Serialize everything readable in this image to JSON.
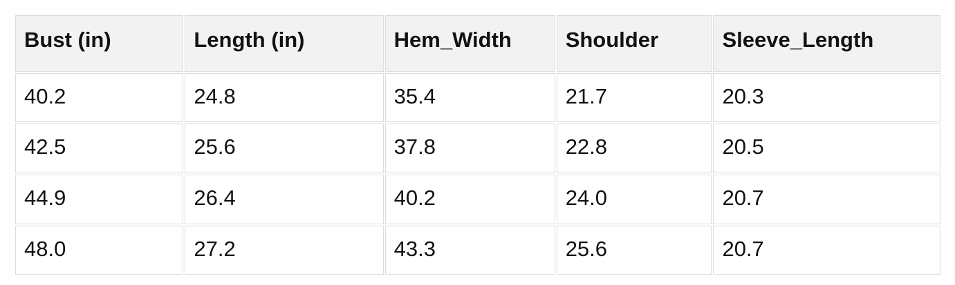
{
  "table": {
    "columns": [
      "Bust (in)",
      "Length (in)",
      "Hem_Width",
      "Shoulder",
      "Sleeve_Length"
    ],
    "rows": [
      [
        "40.2",
        "24.8",
        "35.4",
        "21.7",
        "20.3"
      ],
      [
        "42.5",
        "25.6",
        "37.8",
        "22.8",
        "20.5"
      ],
      [
        "44.9",
        "26.4",
        "40.2",
        "24.0",
        "20.7"
      ],
      [
        "48.0",
        "27.2",
        "43.3",
        "25.6",
        "20.7"
      ]
    ],
    "style": {
      "header_bg": "#f2f2f2",
      "border_color": "#dcdcdc",
      "text_color": "#121212",
      "row_bg": "#ffffff",
      "page_bg": "#ffffff"
    }
  },
  "chart_data": {
    "type": "table",
    "columns": [
      "Bust (in)",
      "Length (in)",
      "Hem_Width",
      "Shoulder",
      "Sleeve_Length"
    ],
    "rows": [
      [
        40.2,
        24.8,
        35.4,
        21.7,
        20.3
      ],
      [
        42.5,
        25.6,
        37.8,
        22.8,
        20.5
      ],
      [
        44.9,
        26.4,
        40.2,
        24.0,
        20.7
      ],
      [
        48.0,
        27.2,
        43.3,
        25.6,
        20.7
      ]
    ]
  }
}
